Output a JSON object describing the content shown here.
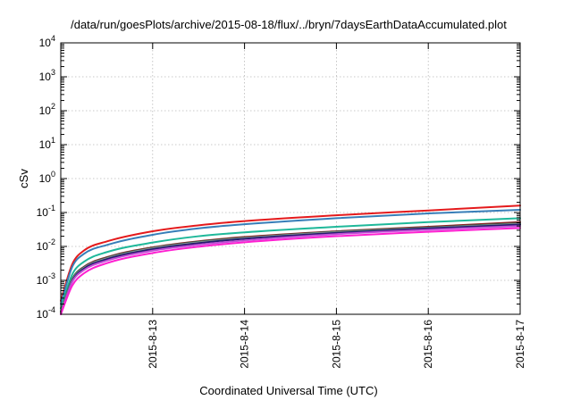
{
  "chart_data": {
    "type": "line",
    "title": "/data/run/goesPlots/archive/2015-08-18/flux/../bryn/7daysEarthDataAccumulated.plot",
    "xlabel": "Coordinated Universal Time (UTC)",
    "ylabel": "cSv",
    "x_ticks": [
      "2015-8-13",
      "2015-8-14",
      "2015-8-15",
      "2015-8-16",
      "2015-8-17"
    ],
    "xlim": [
      "2015-08-12 00:00",
      "2015-08-17 00:00"
    ],
    "y_scale": "log",
    "ylim": [
      0.0001,
      10000
    ],
    "y_ticks": [
      {
        "value": 0.0001,
        "base": "10",
        "exp": "-4"
      },
      {
        "value": 0.001,
        "base": "10",
        "exp": "-3"
      },
      {
        "value": 0.01,
        "base": "10",
        "exp": "-2"
      },
      {
        "value": 0.1,
        "base": "10",
        "exp": "-1"
      },
      {
        "value": 1,
        "base": "10",
        "exp": "0"
      },
      {
        "value": 10,
        "base": "10",
        "exp": "1"
      },
      {
        "value": 100,
        "base": "10",
        "exp": "2"
      },
      {
        "value": 1000,
        "base": "10",
        "exp": "3"
      },
      {
        "value": 10000,
        "base": "10",
        "exp": "4"
      }
    ],
    "grid": true,
    "x": [
      "2015-08-12 00:00",
      "2015-08-12 03:00",
      "2015-08-12 06:00",
      "2015-08-12 12:00",
      "2015-08-13 00:00",
      "2015-08-13 12:00",
      "2015-08-14 00:00",
      "2015-08-15 00:00",
      "2015-08-16 00:00",
      "2015-08-17 00:00"
    ],
    "series": [
      {
        "color": "#e41a1c",
        "values": [
          0.00025,
          0.003,
          0.0075,
          0.014,
          0.028,
          0.042,
          0.056,
          0.083,
          0.115,
          0.16
        ]
      },
      {
        "color": "#377eb8",
        "values": [
          0.0002,
          0.0025,
          0.006,
          0.011,
          0.022,
          0.034,
          0.045,
          0.068,
          0.094,
          0.12
        ]
      },
      {
        "color": "#1fb89a",
        "values": [
          0.00015,
          0.0015,
          0.0035,
          0.0068,
          0.013,
          0.02,
          0.026,
          0.038,
          0.052,
          0.068
        ]
      },
      {
        "color": "#8b1e1e",
        "values": [
          0.00012,
          0.0011,
          0.0025,
          0.0048,
          0.0094,
          0.0142,
          0.019,
          0.028,
          0.038,
          0.052
        ]
      },
      {
        "color": "#2a6b5a",
        "values": [
          0.00012,
          0.0011,
          0.0024,
          0.0046,
          0.009,
          0.0136,
          0.018,
          0.027,
          0.036,
          0.048
        ]
      },
      {
        "color": "#9a9a9a",
        "values": [
          0.00011,
          0.001,
          0.0023,
          0.0044,
          0.0087,
          0.013,
          0.0175,
          0.026,
          0.035,
          0.046
        ]
      },
      {
        "color": "#241a6e",
        "values": [
          0.0001,
          0.00095,
          0.0022,
          0.0042,
          0.0083,
          0.0125,
          0.0168,
          0.025,
          0.034,
          0.044
        ]
      },
      {
        "color": "#c04fd6",
        "values": [
          0.0001,
          0.0009,
          0.002,
          0.0038,
          0.0075,
          0.0112,
          0.015,
          0.023,
          0.031,
          0.04
        ]
      },
      {
        "color": "#ff1fd1",
        "values": [
          0.0001,
          0.0007,
          0.0016,
          0.0032,
          0.0064,
          0.0098,
          0.0132,
          0.02,
          0.027,
          0.035
        ]
      }
    ]
  }
}
